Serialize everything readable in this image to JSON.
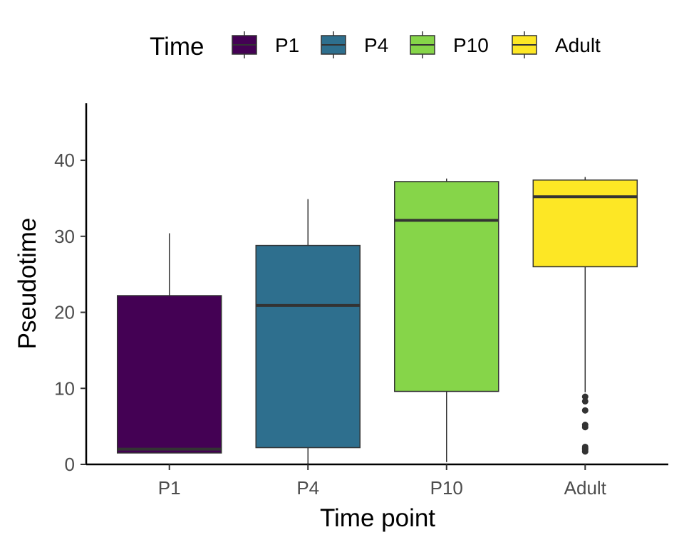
{
  "chart_data": {
    "type": "boxplot",
    "xlabel": "Time point",
    "ylabel": "Pseudotime",
    "ylim": [
      0,
      47.5
    ],
    "yticks": [
      0,
      10,
      20,
      30,
      40
    ],
    "categories": [
      "P1",
      "P4",
      "P10",
      "Adult"
    ],
    "legend": {
      "title": "Time",
      "position": "top",
      "entries": [
        "P1",
        "P4",
        "P10",
        "Adult"
      ]
    },
    "grid": false,
    "boxes": [
      {
        "category": "P1",
        "color": "#440154",
        "whisker_low": 1.5,
        "q1": 1.5,
        "median": 2.0,
        "q3": 22.2,
        "whisker_high": 30.4,
        "outliers": []
      },
      {
        "category": "P4",
        "color": "#2E6F8E",
        "whisker_low": 0.0,
        "q1": 2.2,
        "median": 20.9,
        "q3": 28.8,
        "whisker_high": 34.9,
        "outliers": []
      },
      {
        "category": "P10",
        "color": "#86D549",
        "whisker_low": 0.3,
        "q1": 9.6,
        "median": 32.1,
        "q3": 37.2,
        "whisker_high": 37.6,
        "outliers": []
      },
      {
        "category": "Adult",
        "color": "#FDE725",
        "whisker_low": 9.5,
        "q1": 26.0,
        "median": 35.2,
        "q3": 37.4,
        "whisker_high": 37.8,
        "outliers": [
          1.7,
          1.9,
          2.1,
          2.3,
          4.9,
          5.2,
          7.1,
          8.3,
          8.9
        ]
      }
    ],
    "box_outline_color": "#333333"
  }
}
